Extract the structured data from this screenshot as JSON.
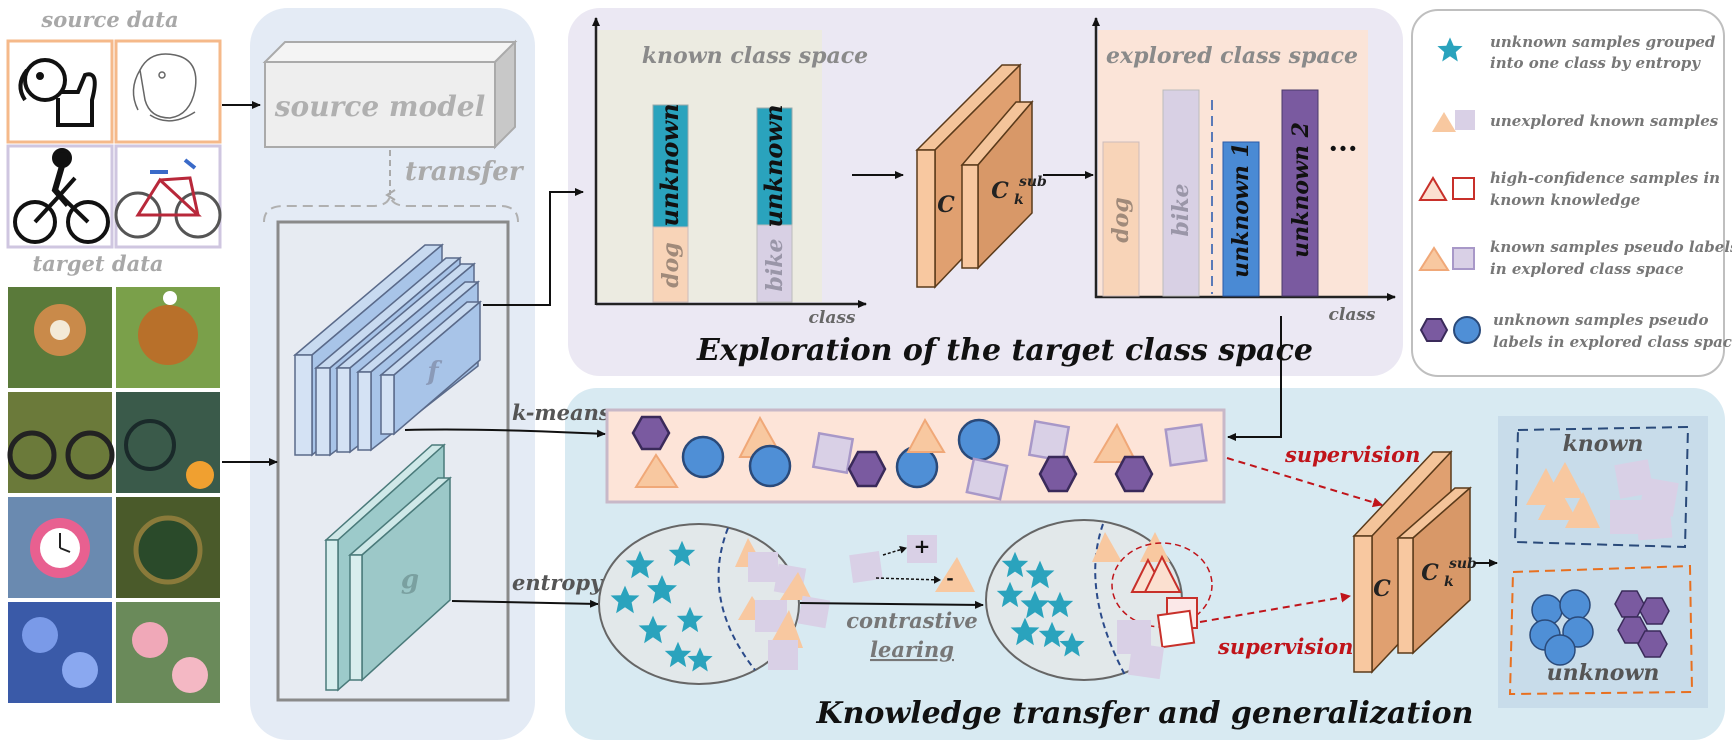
{
  "left": {
    "source_title": "source data",
    "target_title": "target data"
  },
  "model": {
    "source_model": "source model",
    "transfer": "transfer",
    "f_label": "f",
    "g_label": "g"
  },
  "exploration": {
    "known_space_title": "known class space",
    "explored_space_title": "explored class space",
    "known_bars": [
      "unknown",
      "dog",
      "unknown",
      "bike"
    ],
    "explored_bars": [
      "dog",
      "bike",
      "unknown 1",
      "unknown 2"
    ],
    "ellipsis": "···",
    "axis_label": "class",
    "classifier_c": "C",
    "classifier_sub": "C",
    "classifier_sub_sup": "sub",
    "classifier_sub_k": "k",
    "section_title": "Exploration of  the target class space"
  },
  "legend": {
    "items": [
      "unknown samples grouped",
      "into one class by entropy",
      "unexplored  known samples",
      "high-confidence samples in",
      "known knowledge",
      "known samples pseudo labels",
      "in  explored class space",
      "unknown samples pseudo",
      "labels in  explored class space"
    ],
    "colors": {
      "star": "#2aa3bd",
      "triangle": "#f8c8a0",
      "square": "#d9d0e6",
      "hexagon": "#7a5aa0",
      "circle": "#4f8fd6",
      "highconf": "#c8302a"
    }
  },
  "knowledge": {
    "kmeans": "k-means",
    "entropy": "entropy",
    "contrastive": "contrastive",
    "learning": "learing",
    "plus": "+",
    "minus": "-",
    "supervision_top": "supervision",
    "supervision_bottom": "supervision",
    "known": "known",
    "unknown": "unknown",
    "section_title": "Knowledge transfer and generalization"
  }
}
